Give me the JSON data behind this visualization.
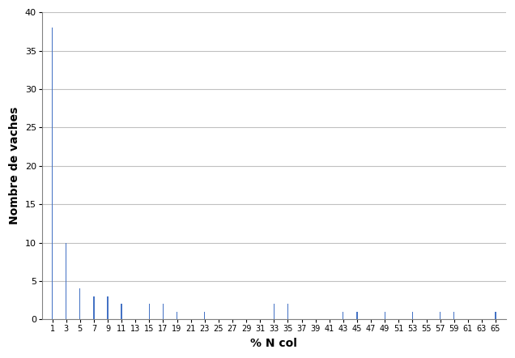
{
  "categories": [
    1,
    3,
    5,
    7,
    9,
    11,
    13,
    15,
    17,
    19,
    21,
    23,
    25,
    27,
    29,
    31,
    33,
    35,
    37,
    39,
    41,
    43,
    45,
    47,
    49,
    51,
    53,
    55,
    57,
    59,
    61,
    63,
    65
  ],
  "values": [
    38,
    10,
    4,
    3,
    3,
    2,
    0,
    2,
    2,
    1,
    0,
    1,
    0,
    0,
    0,
    0,
    2,
    2,
    0,
    0,
    0,
    1,
    1,
    0,
    1,
    0,
    1,
    0,
    1,
    1,
    0,
    0,
    1
  ],
  "bar_color": "#4472C4",
  "xlabel": "% N col",
  "ylabel": "Nombre de vaches",
  "ylim": [
    0,
    40
  ],
  "yticks": [
    0,
    5,
    10,
    15,
    20,
    25,
    30,
    35,
    40
  ],
  "grid_color": "#C0C0C0",
  "background_color": "#FFFFFF",
  "tick_fontsize": 7,
  "label_fontsize": 10,
  "bar_width": 0.15
}
